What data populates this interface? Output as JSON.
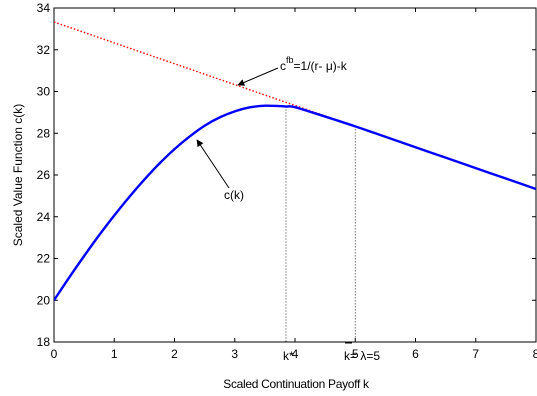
{
  "chart_data": {
    "type": "line",
    "xlabel": "Scaled Continuation Payoff k",
    "ylabel": "Scaled Value Function c(k)",
    "xlim": [
      0,
      8
    ],
    "ylim": [
      18,
      34
    ],
    "xticks": [
      "0",
      "1",
      "2",
      "3",
      "4",
      "5",
      "6",
      "7",
      "8"
    ],
    "yticks": [
      "18",
      "20",
      "22",
      "24",
      "26",
      "28",
      "30",
      "32",
      "34"
    ],
    "grid": false,
    "series": [
      {
        "name": "c(k)",
        "style": "solid",
        "color": "#0000ff",
        "x": [
          0,
          0.25,
          0.5,
          0.75,
          1.0,
          1.25,
          1.5,
          1.75,
          2.0,
          2.25,
          2.5,
          2.75,
          3.0,
          3.25,
          3.5,
          3.75,
          3.85,
          4.0,
          4.5,
          5.0,
          5.5,
          6.0,
          6.5,
          7.0,
          7.5,
          8.0
        ],
        "y": [
          20.0,
          21.08,
          22.12,
          23.12,
          24.06,
          24.95,
          25.78,
          26.55,
          27.24,
          27.84,
          28.36,
          28.76,
          29.05,
          29.24,
          29.32,
          29.3,
          29.28,
          29.25,
          28.8,
          28.33,
          27.83,
          27.33,
          26.83,
          26.33,
          25.83,
          25.33
        ]
      },
      {
        "name": "c^fb = 1/(r-μ)-k",
        "style": "dotted",
        "color": "#ff0000",
        "x": [
          0,
          8
        ],
        "y": [
          33.33,
          25.33
        ]
      }
    ],
    "vlines": [
      {
        "x": 3.85,
        "y_top": 29.28
      },
      {
        "x": 5.0,
        "y_top": 28.33
      }
    ],
    "annotations": [
      {
        "base": "c",
        "sup": "fb",
        "rest": "=1/(r-  μ)-k"
      },
      {
        "text": "c(k)"
      },
      {
        "text": "k*"
      },
      {
        "text": "k= λ=5",
        "overbar_on": "k"
      }
    ]
  }
}
